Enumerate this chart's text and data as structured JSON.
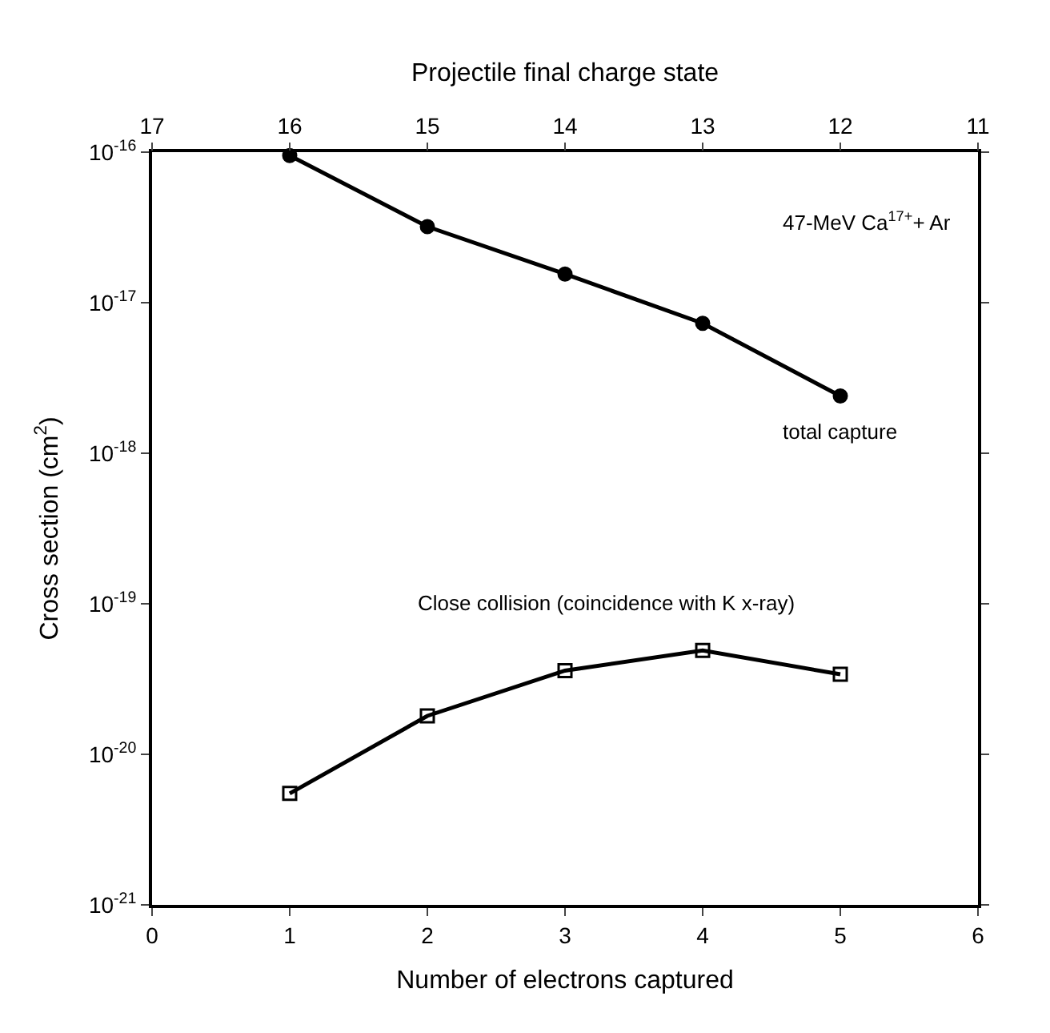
{
  "chart_data": {
    "type": "line",
    "xlabel": "Number of electrons captured",
    "ylabel": "Cross section (cm$^{2}$)",
    "x2label": "Projectile final charge state",
    "x": [
      1,
      2,
      3,
      4,
      5
    ],
    "series": [
      {
        "name": "total capture",
        "color": "#000000",
        "marker": "circle",
        "values": [
          9.5e-17,
          3.2e-17,
          1.55e-17,
          7.3e-18,
          2.4e-18
        ]
      },
      {
        "name": "Close collision (coincidence with K x-ray)",
        "color": "#000000",
        "marker": "square",
        "values": [
          5.5e-21,
          1.8e-20,
          3.6e-20,
          4.9e-20,
          3.4e-20
        ]
      }
    ],
    "log": "y",
    "xlim": [
      0,
      6
    ],
    "xticks": [
      0,
      1,
      2,
      3,
      4,
      5,
      6
    ],
    "x2lim": [
      17,
      11
    ],
    "x2ticks": [
      17,
      16,
      15,
      14,
      13,
      12,
      11
    ],
    "ylim": [
      1e-21,
      1e-16
    ],
    "yticks": [
      {
        "value": 1e-21,
        "label": "10$^{-21}$"
      },
      {
        "value": 1e-20,
        "label": "10$^{-20}$"
      },
      {
        "value": 1e-19,
        "label": "10$^{-19}$"
      },
      {
        "value": 1e-18,
        "label": "10$^{-18}$"
      },
      {
        "value": 1e-17,
        "label": "10$^{-17}$"
      },
      {
        "value": 1e-16,
        "label": "10$^{-16}$"
      }
    ],
    "annotations": [
      "47-MeV Ca$^{17+}$+ Ar"
    ],
    "legend": false,
    "line_style": "solid"
  }
}
